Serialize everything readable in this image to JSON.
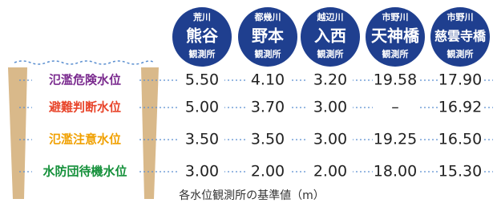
{
  "stations": [
    {
      "river": "荒川",
      "name": "熊谷",
      "suffix": "観測所"
    },
    {
      "river": "都幾川",
      "name": "野本",
      "suffix": "観測所"
    },
    {
      "river": "越辺川",
      "name": "入西",
      "suffix": "観測所"
    },
    {
      "river": "市野川",
      "name": "天神橋",
      "suffix": "観測所"
    },
    {
      "river": "市野川",
      "name": "慈雲寺橋",
      "suffix": "観測所"
    }
  ],
  "rows": [
    {
      "label": "氾濫危険水位",
      "color": "#7a2a8e",
      "values": [
        "5.50",
        "4.10",
        "3.20",
        "19.58",
        "17.90"
      ]
    },
    {
      "label": "避難判断水位",
      "color": "#e8452b",
      "values": [
        "5.00",
        "3.70",
        "3.00",
        "–",
        "16.92"
      ]
    },
    {
      "label": "氾濫注意水位",
      "color": "#f0a000",
      "values": [
        "3.50",
        "3.50",
        "3.00",
        "19.25",
        "16.50"
      ]
    },
    {
      "label": "水防団待機水位",
      "color": "#14903a",
      "values": [
        "3.00",
        "2.00",
        "2.00",
        "18.00",
        "15.30"
      ]
    }
  ],
  "footer": "各水位観測所の基準値（m）"
}
